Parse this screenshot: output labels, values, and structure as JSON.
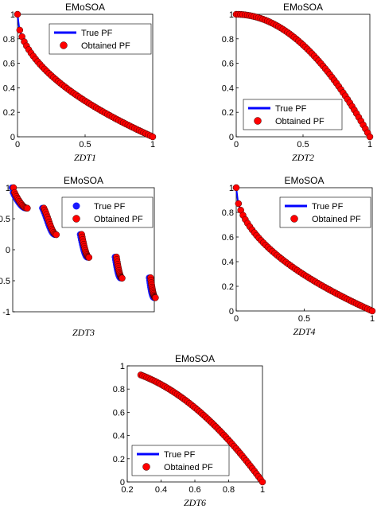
{
  "chart_data": [
    {
      "type": "scatter",
      "title": "EMoSOA",
      "xlabel": "ZDT1",
      "ylabel": "",
      "xlim": [
        0,
        1
      ],
      "ylim": [
        0,
        1
      ],
      "xticks": [
        "0",
        "0.5",
        "1"
      ],
      "yticks": [
        "0",
        "0.2",
        "0.4",
        "0.6",
        "0.8",
        "1"
      ],
      "legend_position": "top-right",
      "series": [
        {
          "name": "True PF",
          "kind": "line",
          "color": "#0000ff",
          "curve": "zdt1"
        },
        {
          "name": "Obtained PF",
          "kind": "points",
          "color": "#ff0000",
          "curve": "zdt1",
          "x_start": 0,
          "x_end": 1
        }
      ]
    },
    {
      "type": "scatter",
      "title": "EMoSOA",
      "xlabel": "ZDT2",
      "ylabel": "",
      "xlim": [
        0,
        1
      ],
      "ylim": [
        0,
        1
      ],
      "xticks": [
        "0",
        "0.5",
        "1"
      ],
      "yticks": [
        "0",
        "0.2",
        "0.4",
        "0.6",
        "0.8",
        "1"
      ],
      "legend_position": "bottom-left",
      "series": [
        {
          "name": "True PF",
          "kind": "line",
          "color": "#0000ff",
          "curve": "zdt2"
        },
        {
          "name": "Obtained PF",
          "kind": "points",
          "color": "#ff0000",
          "curve": "zdt2",
          "x_start": 0,
          "x_end": 1
        }
      ]
    },
    {
      "type": "scatter",
      "title": "EMoSOA",
      "xlabel": "ZDT3",
      "ylabel": "",
      "xlim": [
        0,
        0.85
      ],
      "ylim": [
        -1,
        1
      ],
      "xticks": [],
      "yticks": [
        "-1",
        "-0.5",
        "0",
        "0.5",
        "1"
      ],
      "legend_position": "top-right",
      "legend_marker": true,
      "series": [
        {
          "name": "True PF",
          "kind": "points",
          "color": "#1a1aff",
          "curve": "zdt3"
        },
        {
          "name": "Obtained PF",
          "kind": "points",
          "color": "#ff0000",
          "curve": "zdt3"
        }
      ],
      "segments": [
        [
          0,
          0.083
        ],
        [
          0.182,
          0.257
        ],
        [
          0.409,
          0.453
        ],
        [
          0.618,
          0.652
        ],
        [
          0.823,
          0.852
        ]
      ]
    },
    {
      "type": "scatter",
      "title": "EMoSOA",
      "xlabel": "ZDT4",
      "ylabel": "",
      "xlim": [
        0,
        1
      ],
      "ylim": [
        0,
        1
      ],
      "xticks": [
        "0",
        "0.5",
        "1"
      ],
      "yticks": [
        "0",
        "0.2",
        "0.4",
        "0.6",
        "0.8",
        "1"
      ],
      "legend_position": "top-right",
      "series": [
        {
          "name": "True PF",
          "kind": "line",
          "color": "#0000ff",
          "curve": "zdt1"
        },
        {
          "name": "Obtained PF",
          "kind": "points",
          "color": "#ff0000",
          "curve": "zdt1",
          "x_start": 0,
          "x_end": 1
        }
      ]
    },
    {
      "type": "scatter",
      "title": "EMoSOA",
      "xlabel": "ZDT6",
      "ylabel": "",
      "xlim": [
        0.2,
        1
      ],
      "ylim": [
        0,
        1
      ],
      "xticks": [
        "0.2",
        "0.4",
        "0.6",
        "0.8",
        "1"
      ],
      "yticks": [
        "0",
        "0.2",
        "0.4",
        "0.6",
        "0.8",
        "1"
      ],
      "legend_position": "bottom-left",
      "series": [
        {
          "name": "True PF",
          "kind": "line",
          "color": "#0000ff",
          "curve": "zdt2",
          "x_start": 0.28
        },
        {
          "name": "Obtained PF",
          "kind": "points",
          "color": "#ff0000",
          "curve": "zdt2",
          "x_start": 0.28,
          "x_end": 1
        }
      ]
    }
  ]
}
